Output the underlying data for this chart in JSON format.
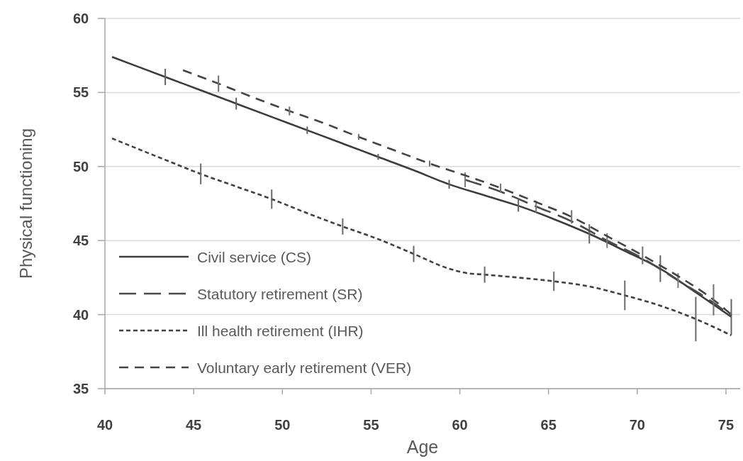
{
  "chart_data": {
    "type": "line",
    "xlabel": "Age",
    "ylabel": "Physical functioning",
    "xlim": [
      40,
      75.8
    ],
    "xticks": [
      40,
      45,
      50,
      55,
      60,
      65,
      70,
      75
    ],
    "ylim": [
      35,
      60
    ],
    "yticks": [
      35,
      40,
      45,
      50,
      55,
      60
    ],
    "grid": "y",
    "legend": "bottom left",
    "marker": "none",
    "series": [
      {
        "name": "Civil service (CS)",
        "color": "#3c3c3c",
        "line_style": "solid",
        "x": [
          40.4,
          43.4,
          45.4,
          47.4,
          49.4,
          51.4,
          53.4,
          55.4,
          57.4,
          59.4,
          61.4,
          63.3,
          65.3,
          67.3,
          69.3,
          71.3,
          73.3,
          75.3
        ],
        "values": [
          57.4,
          56.05,
          55.15,
          54.25,
          53.35,
          52.45,
          51.55,
          50.65,
          49.75,
          48.8,
          48.05,
          47.35,
          46.45,
          45.45,
          44.3,
          43.1,
          41.5,
          39.85
        ],
        "errors": [
          null,
          0.55,
          null,
          0.4,
          null,
          0.25,
          null,
          0.2,
          null,
          0.3,
          null,
          0.4,
          null,
          0.65,
          null,
          0.9,
          null,
          1.2
        ]
      },
      {
        "name": "Statutory retirement (SR)",
        "color": "#4a4a4a",
        "line_style": "dashed",
        "x": [
          60.3,
          62.3,
          64.3,
          66.3,
          68.3,
          70.3,
          72.3,
          74.3,
          75.3
        ],
        "values": [
          49.1,
          48.3,
          47.3,
          46.3,
          45.0,
          43.8,
          42.3,
          40.8,
          39.9
        ],
        "errors": [
          0.5,
          null,
          0.4,
          null,
          0.5,
          null,
          0.5,
          null,
          null
        ]
      },
      {
        "name": "Ill health retirement (IHR)",
        "color": "#404040",
        "line_style": "dotted",
        "x": [
          40.4,
          43.4,
          45.4,
          47.4,
          49.4,
          51.4,
          53.4,
          55.4,
          57.4,
          59.4,
          60.4,
          61.4,
          63.3,
          65.3,
          67.3,
          69.3,
          71.3,
          73.3,
          75.3
        ],
        "values": [
          51.9,
          50.45,
          49.5,
          48.65,
          47.8,
          46.85,
          45.95,
          45.1,
          44.1,
          43.1,
          42.8,
          42.7,
          42.5,
          42.25,
          41.9,
          41.3,
          40.6,
          39.7,
          38.6
        ],
        "errors": [
          null,
          null,
          0.7,
          null,
          0.65,
          null,
          0.55,
          null,
          0.55,
          null,
          null,
          0.55,
          null,
          0.65,
          null,
          1.0,
          null,
          1.5,
          null
        ]
      },
      {
        "name": "Voluntary early retirement (VER)",
        "color": "#444444",
        "line_style": "dashed",
        "x": [
          44.4,
          46.4,
          48.4,
          50.4,
          52.4,
          54.3,
          56.3,
          58.3,
          60.3,
          62.3,
          64.3,
          66.3,
          68.3,
          70.3,
          72.3,
          74.3,
          75.3
        ],
        "values": [
          56.5,
          55.6,
          54.65,
          53.75,
          52.9,
          52.0,
          51.1,
          50.2,
          49.4,
          48.55,
          47.6,
          46.6,
          45.3,
          44.0,
          42.6,
          41.0,
          40.0
        ],
        "errors": [
          null,
          0.55,
          null,
          0.3,
          null,
          0.2,
          null,
          0.2,
          null,
          0.3,
          null,
          0.45,
          null,
          0.6,
          null,
          1.05,
          null
        ]
      }
    ]
  }
}
